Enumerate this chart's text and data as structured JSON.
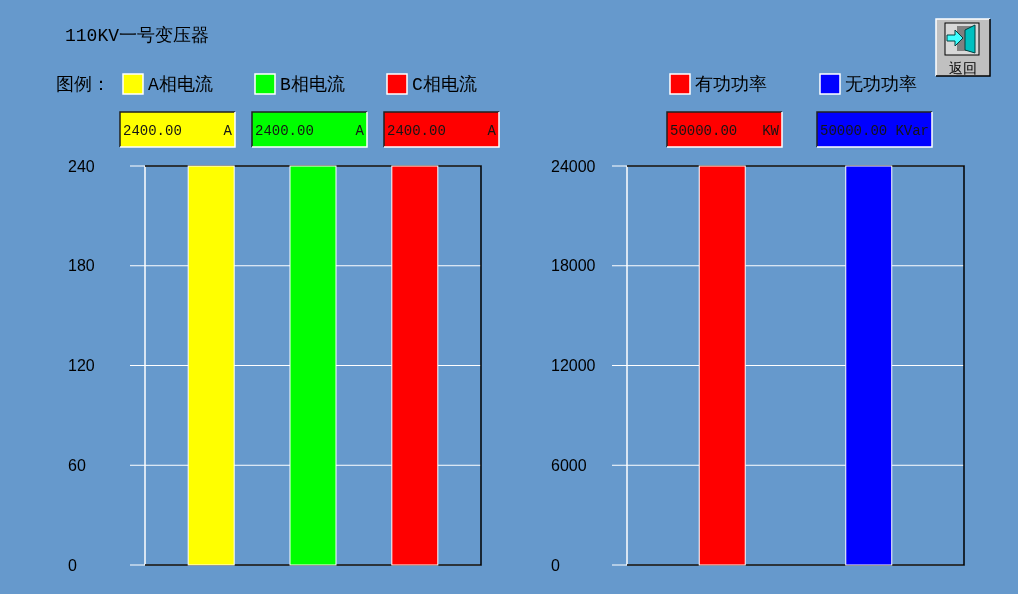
{
  "chart_data": [
    {
      "type": "bar",
      "title": "110KV一号变压器",
      "legend_title": "图例：",
      "categories": [
        null,
        null,
        null
      ],
      "series": [
        {
          "name": "A相电流",
          "color": "#ffff00",
          "values": [
            240,
            null,
            null
          ]
        },
        {
          "name": "B相电流",
          "color": "#00ff00",
          "values": [
            null,
            240,
            null
          ]
        },
        {
          "name": "C相电流",
          "color": "#ff0000",
          "values": [
            null,
            null,
            240
          ]
        }
      ],
      "ylim": [
        0,
        240
      ],
      "yticks": [
        0,
        60,
        120,
        180,
        240
      ],
      "grid": "y",
      "legend": "top",
      "annotations": [
        "2400.00 A",
        "2400.00 A",
        "2400.00 A"
      ]
    },
    {
      "type": "bar",
      "categories": [
        null,
        null
      ],
      "series": [
        {
          "name": "有功功率",
          "color": "#ff0000",
          "values": [
            24000,
            null
          ]
        },
        {
          "name": "无功功率",
          "color": "#0000ff",
          "values": [
            null,
            24000
          ]
        }
      ],
      "ylim": [
        0,
        24000
      ],
      "yticks": [
        0,
        6000,
        12000,
        18000,
        24000
      ],
      "grid": "y",
      "legend": "top",
      "annotations": [
        "50000.00 KW",
        "50000.00 KVar",
        "返回"
      ]
    }
  ]
}
